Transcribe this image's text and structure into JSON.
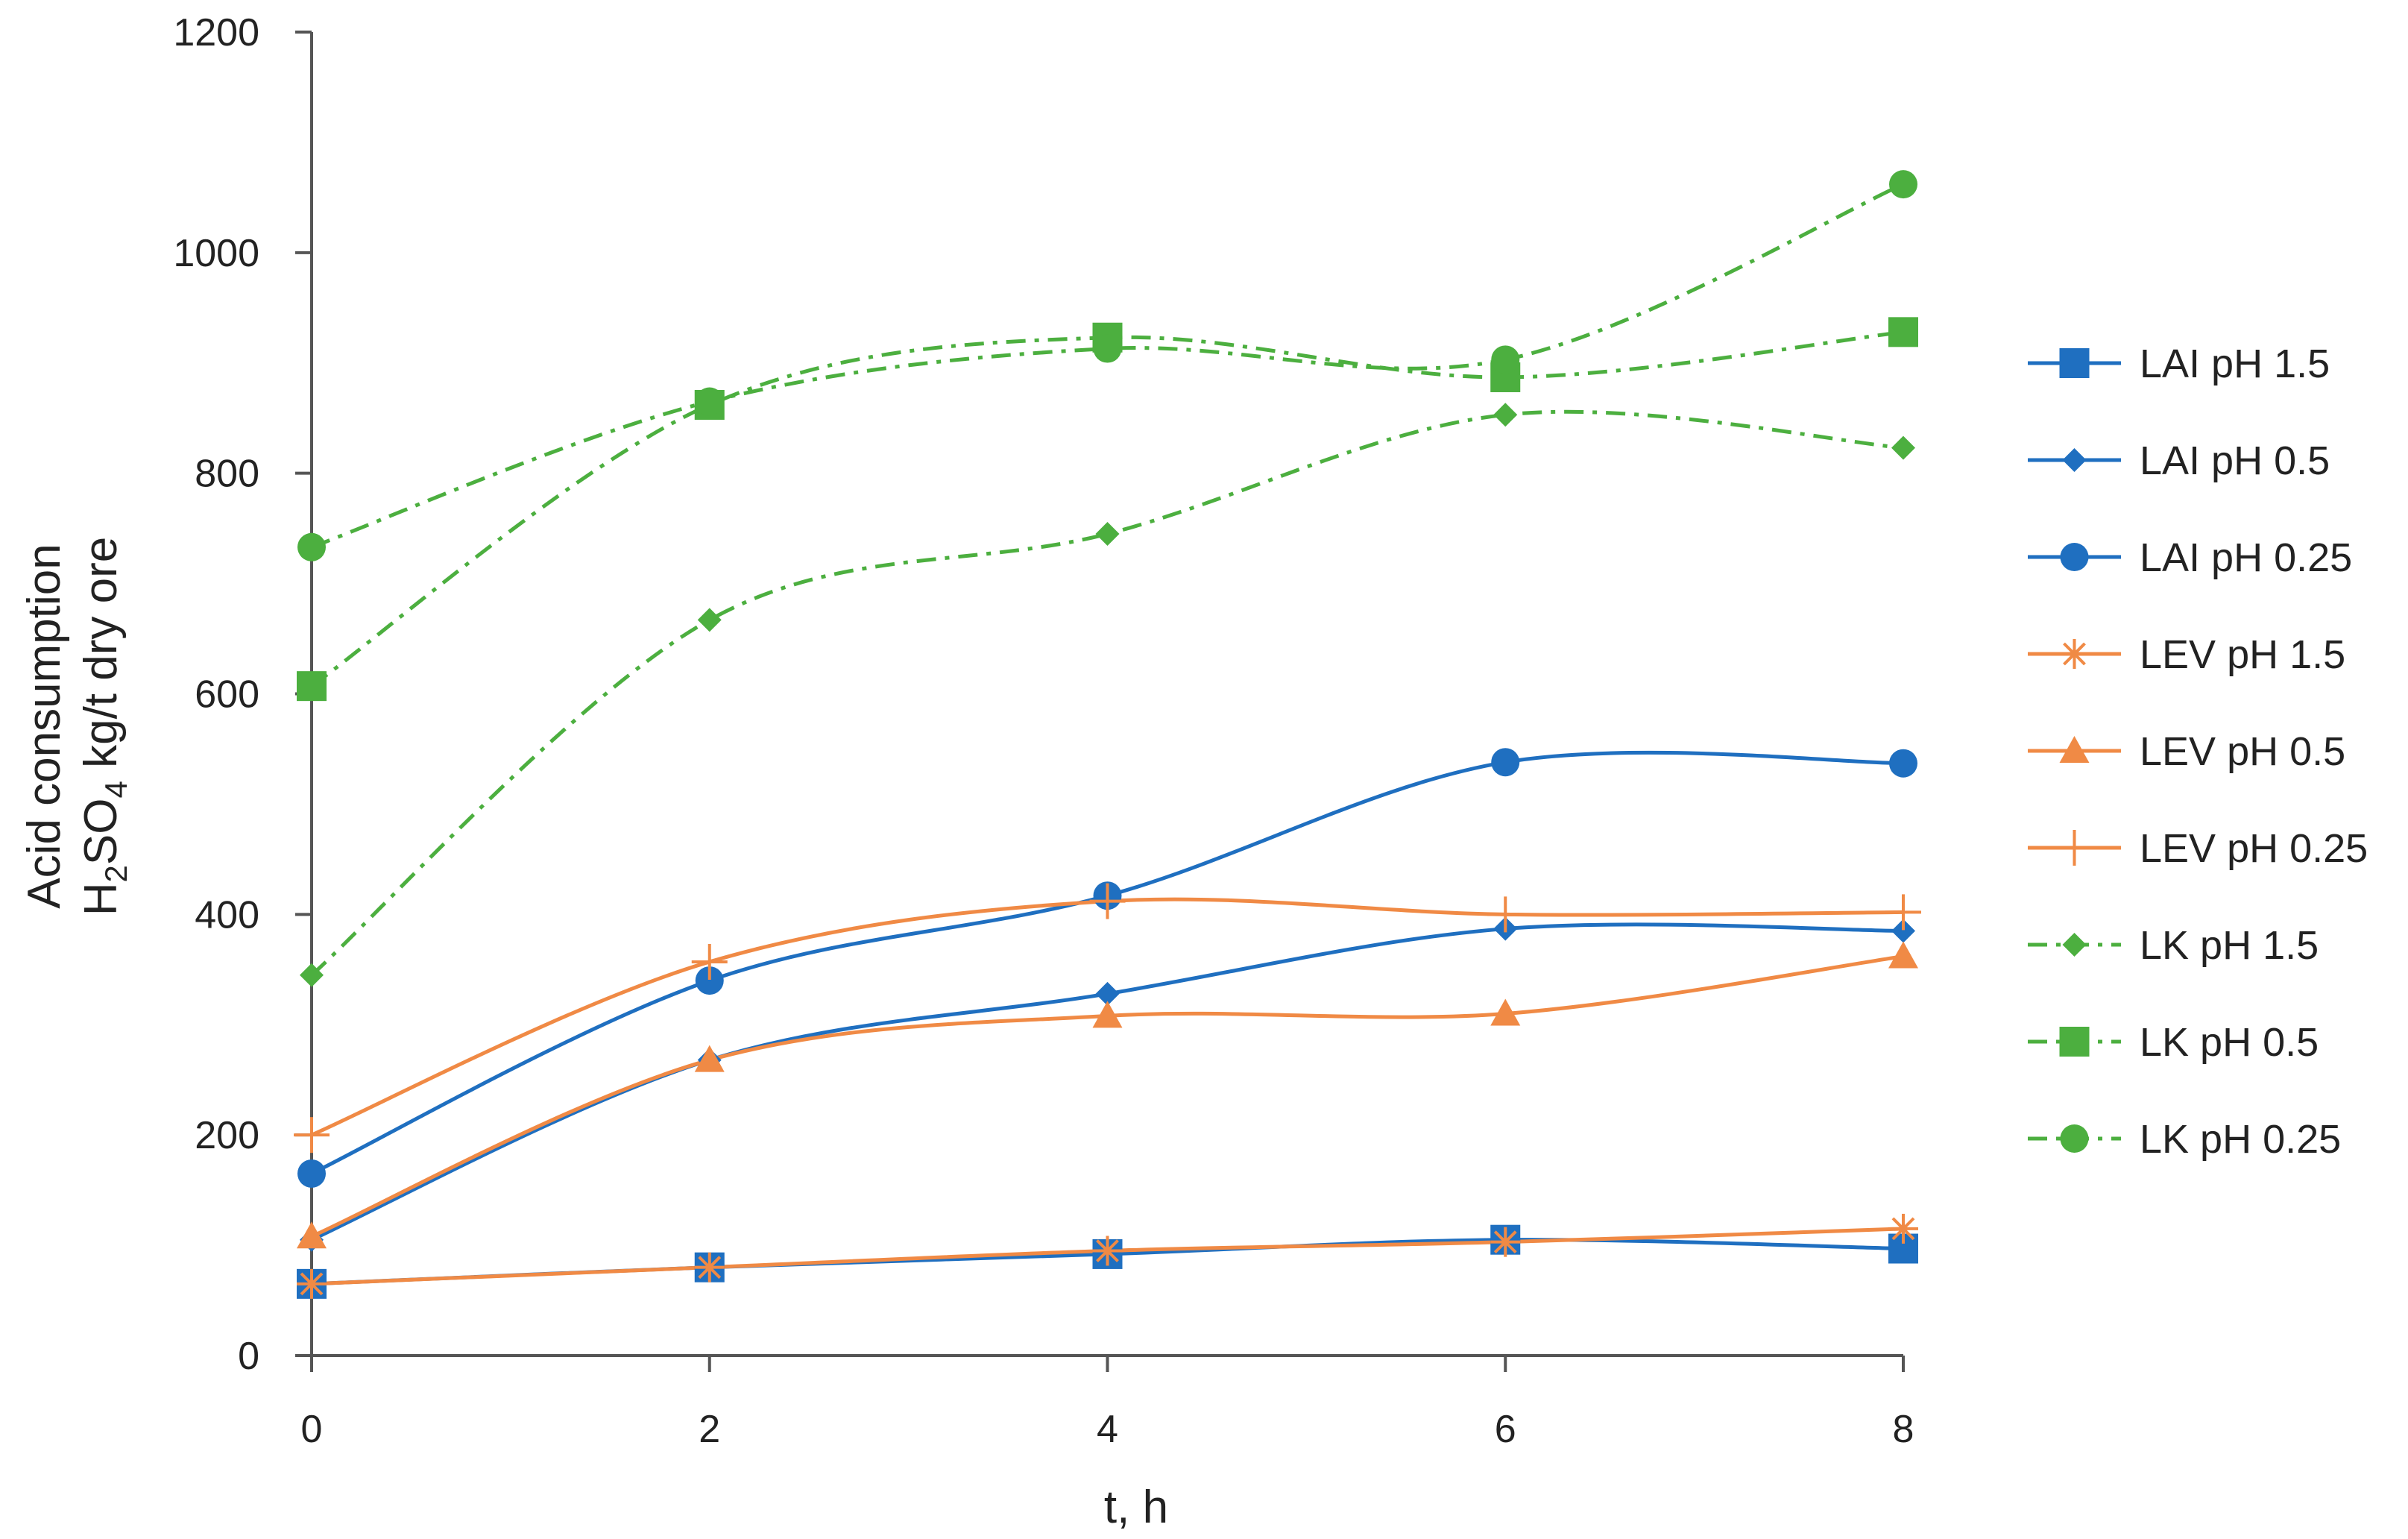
{
  "chart_data": {
    "type": "line",
    "title": "",
    "xlabel": "t, h",
    "ylabel_line1": "Acid consumption",
    "ylabel_line2": {
      "pre": "H",
      "sub1": "2",
      "mid": "SO",
      "sub2": "4",
      "post": " kg/t dry ore"
    },
    "x": [
      0,
      2,
      4,
      6,
      8
    ],
    "xlim": [
      0,
      8
    ],
    "ylim": [
      0,
      1200
    ],
    "x_ticks": [
      0,
      2,
      4,
      6,
      8
    ],
    "y_ticks": [
      0,
      200,
      400,
      600,
      800,
      1000,
      1200
    ],
    "grid": false,
    "legend_position": "right",
    "series": [
      {
        "name": "LAI pH 1.5",
        "values": [
          65,
          80,
          92,
          105,
          97
        ],
        "color": "#1f6fc0",
        "marker": "square",
        "dash": "solid"
      },
      {
        "name": "LAI pH 0.5",
        "values": [
          105,
          268,
          328,
          387,
          385
        ],
        "color": "#1f6fc0",
        "marker": "diamond",
        "dash": "solid"
      },
      {
        "name": "LAI pH 0.25",
        "values": [
          165,
          340,
          417,
          538,
          537
        ],
        "color": "#1f6fc0",
        "marker": "circle",
        "dash": "solid"
      },
      {
        "name": "LEV pH 1.5",
        "values": [
          65,
          80,
          95,
          103,
          115
        ],
        "color": "#f08a45",
        "marker": "asterisk",
        "dash": "solid"
      },
      {
        "name": "LEV pH 0.5",
        "values": [
          108,
          268,
          308,
          310,
          362
        ],
        "color": "#f08a45",
        "marker": "triangle",
        "dash": "solid"
      },
      {
        "name": "LEV pH 0.25",
        "values": [
          200,
          357,
          412,
          400,
          402
        ],
        "color": "#f08a45",
        "marker": "plus",
        "dash": "solid"
      },
      {
        "name": "LK pH 1.5",
        "values": [
          345,
          667,
          745,
          853,
          823
        ],
        "color": "#4caf3f",
        "marker": "diamond",
        "dash": "dashdot"
      },
      {
        "name": "LK pH 0.5",
        "values": [
          607,
          862,
          923,
          887,
          928
        ],
        "color": "#4caf3f",
        "marker": "square",
        "dash": "dashdot"
      },
      {
        "name": "LK pH 0.25",
        "values": [
          733,
          865,
          913,
          903,
          1062
        ],
        "color": "#4caf3f",
        "marker": "circle",
        "dash": "dashdot"
      }
    ]
  }
}
